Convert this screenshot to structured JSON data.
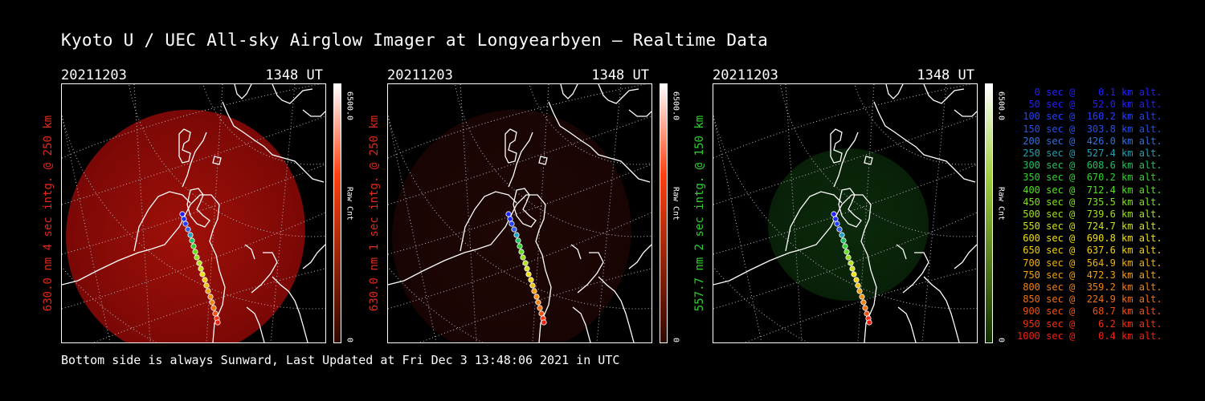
{
  "title": "Kyoto U / UEC All-sky Airglow Imager at Longyearbyen — Realtime Data",
  "footer": "Bottom side is always Sunward, Last Updated at Fri Dec  3 13:48:06 2021 in UTC",
  "colors": {
    "red_label": "#e03020",
    "green_label": "#30d030"
  },
  "panels": [
    {
      "date": "20211203",
      "time": "1348 UT",
      "label": "630.0 nm 4 sec intg. @ 250 km",
      "label_color": "#e02818",
      "cbar_max": "6500.0",
      "cbar_label": "Raw Cnt",
      "cbar_min": "0",
      "cbar_color": "#ff4010",
      "intensity": "strong"
    },
    {
      "date": "20211203",
      "time": "1348 UT",
      "label": "630.0 nm 1 sec intg. @ 250 km",
      "label_color": "#e02818",
      "cbar_max": "6500.0",
      "cbar_label": "Raw Cnt",
      "cbar_min": "0",
      "cbar_color": "#ff4010",
      "intensity": "weak"
    },
    {
      "date": "20211203",
      "time": "1348 UT",
      "label": "557.7 nm 2 sec intg. @ 150 km",
      "label_color": "#30d030",
      "cbar_max": "6500.0",
      "cbar_label": "Raw Cnt",
      "cbar_min": "0",
      "cbar_color": "#60c010",
      "intensity": "weak"
    }
  ],
  "legend": [
    {
      "text": "   0 sec @    0.1 km alt.",
      "color": "#2020ff"
    },
    {
      "text": "  50 sec @   52.0 km alt.",
      "color": "#2020ff"
    },
    {
      "text": " 100 sec @  160.2 km alt.",
      "color": "#2040ff"
    },
    {
      "text": " 150 sec @  303.8 km alt.",
      "color": "#2050f0"
    },
    {
      "text": " 200 sec @  426.0 km alt.",
      "color": "#3070e0"
    },
    {
      "text": " 250 sec @  527.4 km alt.",
      "color": "#20a0b0"
    },
    {
      "text": " 300 sec @  608.6 km alt.",
      "color": "#20c060"
    },
    {
      "text": " 350 sec @  670.2 km alt.",
      "color": "#30d030"
    },
    {
      "text": " 400 sec @  712.4 km alt.",
      "color": "#50e020"
    },
    {
      "text": " 450 sec @  735.5 km alt.",
      "color": "#80e020"
    },
    {
      "text": " 500 sec @  739.6 km alt.",
      "color": "#a0e020"
    },
    {
      "text": " 550 sec @  724.7 km alt.",
      "color": "#d0e020"
    },
    {
      "text": " 600 sec @  690.8 km alt.",
      "color": "#f0e010"
    },
    {
      "text": " 650 sec @  637.6 km alt.",
      "color": "#f0d010"
    },
    {
      "text": " 700 sec @  564.9 km alt.",
      "color": "#f0b010"
    },
    {
      "text": " 750 sec @  472.3 km alt.",
      "color": "#f0a010"
    },
    {
      "text": " 800 sec @  359.2 km alt.",
      "color": "#f08010"
    },
    {
      "text": " 850 sec @  224.9 km alt.",
      "color": "#f07010"
    },
    {
      "text": " 900 sec @   68.7 km alt.",
      "color": "#f05010"
    },
    {
      "text": " 950 sec @    6.2 km alt.",
      "color": "#f03010"
    },
    {
      "text": "1000 sec @    0.4 km alt.",
      "color": "#f02010"
    }
  ]
}
